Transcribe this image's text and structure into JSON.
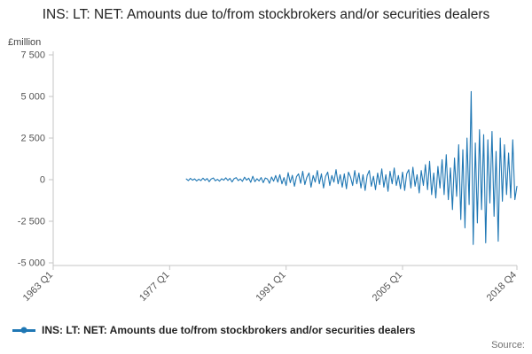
{
  "title": "INS: LT: NET: Amounts due to/from stockbrokers and/or securities dealers",
  "y_axis_unit_label": "£million",
  "source_label": "Source:",
  "legend": {
    "label": "INS: LT: NET: Amounts due to/from stockbrokers and/or securities dealers"
  },
  "colors": {
    "line": "#1f77b4",
    "axis": "#c6c6c6",
    "tick_text": "#555555",
    "title_text": "#222222"
  },
  "chart_data": {
    "type": "line",
    "title": "INS: LT: NET: Amounts due to/from stockbrokers and/or securities dealers",
    "xlabel": "",
    "ylabel": "£million",
    "ylim": [
      -5000,
      7500
    ],
    "x_range": [
      1963,
      2018.75
    ],
    "grid": false,
    "legend_position": "bottom-left",
    "yticks": {
      "values": [
        7500,
        5000,
        2500,
        0,
        -2500,
        -5000
      ],
      "labels": [
        "7 500",
        "5 000",
        "2 500",
        "0",
        "-2 500",
        "-5 000"
      ]
    },
    "xticks": {
      "values": [
        1963.0,
        1977.0,
        1991.0,
        2005.0,
        2018.75
      ],
      "labels": [
        "1963 Q1",
        "1977 Q1",
        "1991 Q1",
        "2005 Q1",
        "2018 Q4"
      ]
    },
    "series": [
      {
        "name": "INS: LT: NET: Amounts due to/from stockbrokers and/or securities dealers",
        "start_year": 1979,
        "interval_years": 0.25,
        "values": [
          40,
          -60,
          80,
          -30,
          50,
          -80,
          30,
          -60,
          90,
          -40,
          70,
          -120,
          40,
          100,
          -70,
          20,
          -90,
          60,
          -30,
          110,
          -50,
          80,
          -140,
          60,
          120,
          -60,
          40,
          -100,
          150,
          -30,
          90,
          -160,
          200,
          -120,
          60,
          -80,
          130,
          -180,
          100,
          40,
          -220,
          160,
          -90,
          250,
          -150,
          300,
          -250,
          120,
          -350,
          420,
          -180,
          260,
          -400,
          180,
          350,
          -220,
          500,
          -300,
          150,
          400,
          -450,
          250,
          -150,
          550,
          -250,
          350,
          -500,
          200,
          450,
          -350,
          250,
          -150,
          600,
          -250,
          300,
          -450,
          350,
          -550,
          450,
          150,
          -350,
          550,
          -250,
          400,
          -500,
          300,
          -650,
          250,
          550,
          -400,
          200,
          -600,
          400,
          -300,
          650,
          -450,
          300,
          -700,
          500,
          -250,
          700,
          -350,
          250,
          -550,
          450,
          -650,
          350,
          600,
          -500,
          750,
          -400,
          300,
          -800,
          550,
          -350,
          900,
          -600,
          1100,
          -900,
          400,
          -1100,
          800,
          -500,
          1200,
          -900,
          1500,
          -1200,
          700,
          -1800,
          1300,
          -1000,
          2100,
          -2400,
          1800,
          -2900,
          2500,
          -1500,
          5300,
          -3900,
          2200,
          -2600,
          3000,
          -1800,
          2700,
          -3800,
          2400,
          -1400,
          2900,
          -2200,
          1700,
          -3700,
          2500,
          -1300,
          2100,
          -900,
          1600,
          -1100,
          2400,
          -1200,
          -400
        ]
      }
    ]
  }
}
